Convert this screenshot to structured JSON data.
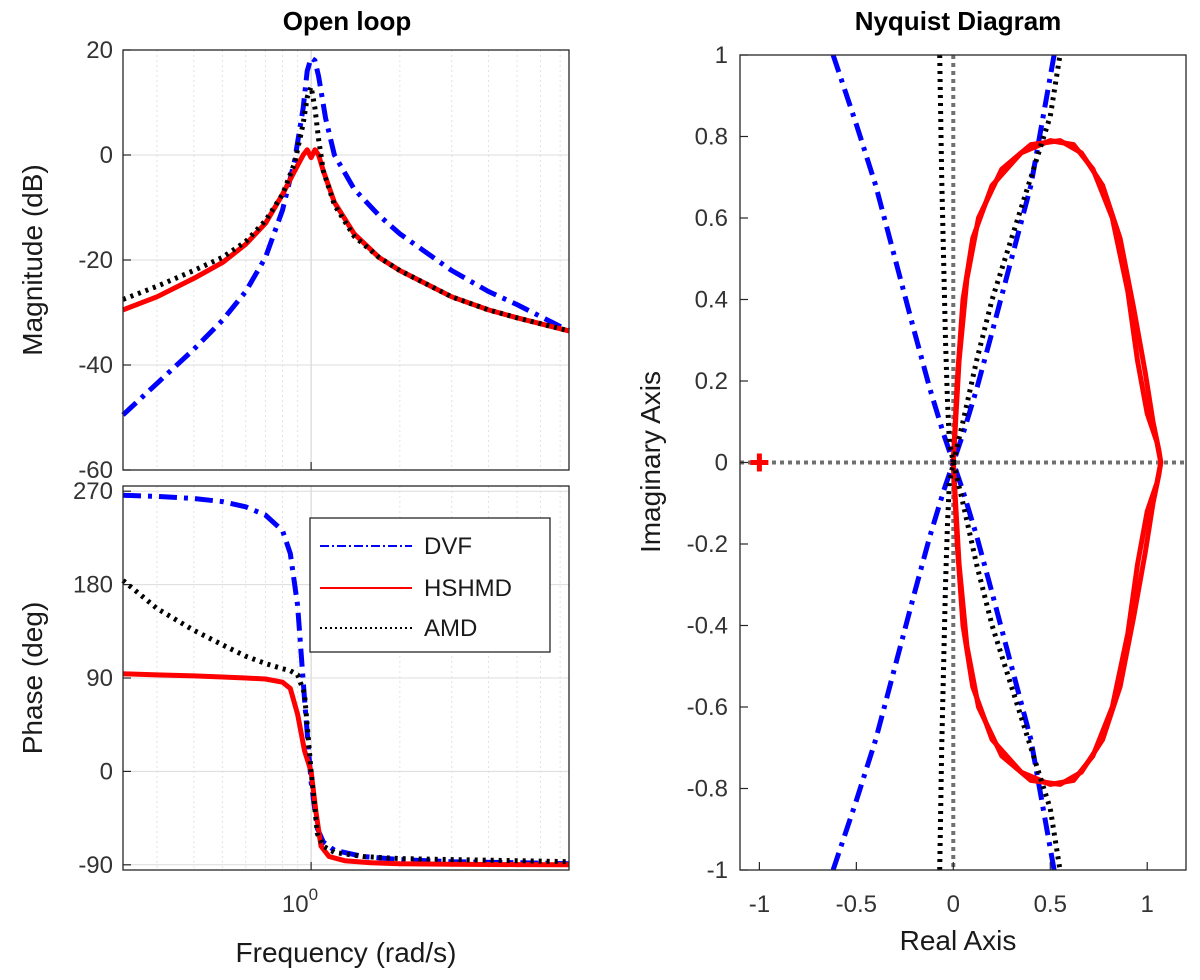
{
  "chart_data": [
    {
      "type": "line",
      "title": "Open loop",
      "xlabel": "Frequency  (rad/s)",
      "ylabel": "Magnitude (dB)",
      "xscale": "log",
      "xlim": [
        0.23,
        7.5
      ],
      "ylim": [
        -60,
        20
      ],
      "grid": true,
      "xtick_base": "10",
      "xtick_exp": "0",
      "yticks": [
        20,
        0,
        -20,
        -40,
        -60
      ],
      "ytick_labels": [
        "20",
        "0",
        "-20",
        "-40",
        "-60"
      ],
      "series": [
        {
          "name": "DVF",
          "style": "dash-dot",
          "color": "#0000ff",
          "x": [
            0.23,
            0.3,
            0.4,
            0.5,
            0.6,
            0.7,
            0.8,
            0.88,
            0.94,
            0.97,
            1.0,
            1.03,
            1.06,
            1.12,
            1.2,
            1.4,
            1.7,
            2.0,
            3.0,
            4.0,
            5.0,
            7.5
          ],
          "y": [
            -49.5,
            -43.5,
            -37,
            -31.5,
            -26,
            -19.5,
            -10.5,
            -1,
            9,
            16,
            18.5,
            18,
            15,
            7,
            0,
            -6.5,
            -11.5,
            -15,
            -22,
            -26,
            -28.5,
            -33.5
          ]
        },
        {
          "name": "HSHMD",
          "style": "solid",
          "color": "#ff0000",
          "x": [
            0.23,
            0.3,
            0.4,
            0.5,
            0.6,
            0.7,
            0.8,
            0.88,
            0.94,
            0.97,
            1.0,
            1.03,
            1.06,
            1.1,
            1.2,
            1.4,
            1.7,
            2.0,
            3.0,
            4.0,
            5.0,
            7.5
          ],
          "y": [
            -29.5,
            -27,
            -23.5,
            -20.5,
            -17,
            -13,
            -7.5,
            -3,
            0,
            1,
            -0.5,
            1,
            0,
            -3,
            -9,
            -15,
            -19.5,
            -22,
            -27,
            -29.5,
            -31,
            -33.5
          ]
        },
        {
          "name": "AMD",
          "style": "dotted",
          "color": "#000000",
          "x": [
            0.23,
            0.3,
            0.4,
            0.5,
            0.6,
            0.7,
            0.8,
            0.88,
            0.94,
            0.97,
            1.0,
            1.03,
            1.06,
            1.1,
            1.2,
            1.4,
            1.7,
            2.0,
            3.0,
            4.0,
            5.0,
            7.5
          ],
          "y": [
            -27.5,
            -25,
            -22,
            -19.5,
            -16.5,
            -12.5,
            -7.5,
            -1.5,
            6,
            11,
            13,
            9,
            3,
            -3,
            -9.5,
            -15.5,
            -19.5,
            -22,
            -27,
            -29.5,
            -31,
            -33.5
          ]
        }
      ]
    },
    {
      "type": "line",
      "title": "",
      "xlabel": "Frequency  (rad/s)",
      "ylabel": "Phase (deg)",
      "xscale": "log",
      "xlim": [
        0.23,
        7.5
      ],
      "ylim": [
        -95,
        275
      ],
      "grid": true,
      "yticks": [
        270,
        180,
        90,
        0,
        -90
      ],
      "ytick_labels": [
        "270",
        "180",
        "90",
        "0",
        "-90"
      ],
      "legend": {
        "position": "top-right",
        "entries": [
          "DVF",
          "HSHMD",
          "AMD"
        ]
      },
      "series": [
        {
          "name": "DVF",
          "style": "dash-dot",
          "color": "#0000ff",
          "x": [
            0.23,
            0.3,
            0.4,
            0.5,
            0.6,
            0.7,
            0.8,
            0.85,
            0.9,
            0.95,
            1.0,
            1.05,
            1.1,
            1.2,
            1.5,
            2.0,
            3.0,
            5.0,
            7.5
          ],
          "y": [
            266,
            265,
            263,
            260,
            255,
            247,
            232,
            210,
            160,
            70,
            -10,
            -55,
            -68,
            -76,
            -82,
            -85,
            -87,
            -88,
            -89
          ]
        },
        {
          "name": "HSHMD",
          "style": "solid",
          "color": "#ff0000",
          "x": [
            0.23,
            0.3,
            0.4,
            0.5,
            0.6,
            0.7,
            0.8,
            0.85,
            0.9,
            0.95,
            1.0,
            1.04,
            1.08,
            1.15,
            1.3,
            1.6,
            2.0,
            3.0,
            5.0,
            7.5
          ],
          "y": [
            94,
            93,
            92,
            91,
            90,
            89,
            86,
            80,
            55,
            20,
            0,
            -40,
            -72,
            -82,
            -86,
            -88,
            -89,
            -89.5,
            -89.8,
            -90
          ]
        },
        {
          "name": "AMD",
          "style": "dotted",
          "color": "#000000",
          "x": [
            0.23,
            0.3,
            0.4,
            0.5,
            0.6,
            0.7,
            0.8,
            0.85,
            0.9,
            0.95,
            1.0,
            1.05,
            1.1,
            1.2,
            1.5,
            2.0,
            3.0,
            5.0,
            7.5
          ],
          "y": [
            184,
            157,
            136,
            122,
            111,
            104,
            99,
            97,
            93,
            75,
            0,
            -60,
            -72,
            -78,
            -82,
            -84,
            -85,
            -86,
            -87
          ]
        }
      ]
    },
    {
      "type": "line",
      "title": "Nyquist Diagram",
      "xlabel": "Real Axis",
      "ylabel": "Imaginary Axis",
      "xlim": [
        -1.1,
        1.2
      ],
      "ylim": [
        -1,
        1
      ],
      "xticks": [
        -1,
        -0.5,
        0,
        0.5,
        1
      ],
      "xtick_labels": [
        "-1",
        "-0.5",
        "0",
        "0.5",
        "1"
      ],
      "yticks": [
        1,
        0.8,
        0.6,
        0.4,
        0.2,
        0,
        -0.2,
        -0.4,
        -0.6,
        -0.8,
        -1
      ],
      "ytick_labels": [
        "1",
        "0.8",
        "0.6",
        "0.4",
        "0.2",
        "0",
        "-0.2",
        "-0.4",
        "-0.6",
        "-0.8",
        "-1"
      ],
      "critical_point": {
        "x": -1,
        "y": 0
      },
      "reference_lines": [
        {
          "axis": "x",
          "value": 0
        },
        {
          "axis": "y",
          "value": 0
        }
      ],
      "series": [
        {
          "name": "DVF",
          "style": "dash-dot",
          "color": "#0000ff",
          "x": [
            -0.62,
            -0.5,
            -0.4,
            -0.3,
            -0.2,
            -0.12,
            -0.05,
            0,
            0.05,
            0.12,
            0.2,
            0.3,
            0.4,
            0.52
          ],
          "y": [
            1,
            0.83,
            0.68,
            0.5,
            0.32,
            0.18,
            0.07,
            0,
            -0.07,
            -0.18,
            -0.32,
            -0.5,
            -0.68,
            -1
          ]
        },
        {
          "name": "DVF",
          "style": "dash-dot",
          "color": "#0000ff",
          "x": [
            -0.62,
            -0.5,
            -0.4,
            -0.3,
            -0.2,
            -0.12,
            -0.05,
            0,
            0.05,
            0.12,
            0.2,
            0.3,
            0.4,
            0.52
          ],
          "y": [
            -1,
            -0.83,
            -0.68,
            -0.5,
            -0.32,
            -0.18,
            -0.07,
            0,
            0.07,
            0.18,
            0.32,
            0.5,
            0.68,
            1
          ]
        },
        {
          "name": "HSHMD",
          "style": "solid",
          "color": "#ff0000",
          "x": [
            0,
            0.02,
            0.05,
            0.1,
            0.2,
            0.35,
            0.5,
            0.62,
            0.72,
            0.82,
            0.9,
            0.95,
            1.0,
            1.05,
            1.07,
            1.05,
            1.0,
            0.95,
            0.9,
            0.82,
            0.72,
            0.62,
            0.5,
            0.35,
            0.2,
            0.1,
            0.05,
            0.02,
            0
          ],
          "y": [
            0,
            0.2,
            0.4,
            0.55,
            0.68,
            0.76,
            0.79,
            0.78,
            0.72,
            0.6,
            0.42,
            0.25,
            0.12,
            0.05,
            0,
            -0.05,
            -0.12,
            -0.25,
            -0.42,
            -0.6,
            -0.72,
            -0.78,
            -0.79,
            -0.76,
            -0.68,
            -0.55,
            -0.4,
            -0.2,
            0
          ]
        },
        {
          "name": "HSHMD",
          "style": "solid",
          "color": "#ff0000",
          "x": [
            0,
            0.03,
            0.07,
            0.13,
            0.25,
            0.4,
            0.55,
            0.66,
            0.77,
            0.86,
            0.93,
            0.99,
            1.03,
            1.06,
            1.07,
            1.06,
            1.03,
            0.99,
            0.93,
            0.86,
            0.77,
            0.66,
            0.55,
            0.4,
            0.25,
            0.13,
            0.07,
            0.03,
            0
          ],
          "y": [
            0,
            0.25,
            0.45,
            0.6,
            0.72,
            0.78,
            0.79,
            0.76,
            0.68,
            0.55,
            0.38,
            0.22,
            0.1,
            0.03,
            0,
            -0.03,
            -0.1,
            -0.22,
            -0.38,
            -0.55,
            -0.68,
            -0.76,
            -0.79,
            -0.78,
            -0.72,
            -0.6,
            -0.45,
            -0.25,
            0
          ]
        },
        {
          "name": "AMD",
          "style": "dotted",
          "color": "#000000",
          "x": [
            -0.07,
            -0.065,
            -0.06,
            -0.05,
            -0.04,
            -0.03,
            -0.02,
            0,
            0.05,
            0.12,
            0.2,
            0.3,
            0.4,
            0.5,
            0.55
          ],
          "y": [
            1,
            0.85,
            0.7,
            0.5,
            0.3,
            0.15,
            0.05,
            0,
            -0.1,
            -0.25,
            -0.4,
            -0.55,
            -0.7,
            -0.85,
            -1
          ]
        },
        {
          "name": "AMD",
          "style": "dotted",
          "color": "#000000",
          "x": [
            -0.07,
            -0.065,
            -0.06,
            -0.05,
            -0.04,
            -0.03,
            -0.02,
            0,
            0.05,
            0.12,
            0.2,
            0.3,
            0.4,
            0.5,
            0.55
          ],
          "y": [
            -1,
            -0.85,
            -0.7,
            -0.5,
            -0.3,
            -0.15,
            -0.05,
            0,
            0.1,
            0.25,
            0.4,
            0.55,
            0.7,
            0.85,
            1
          ]
        }
      ]
    }
  ]
}
